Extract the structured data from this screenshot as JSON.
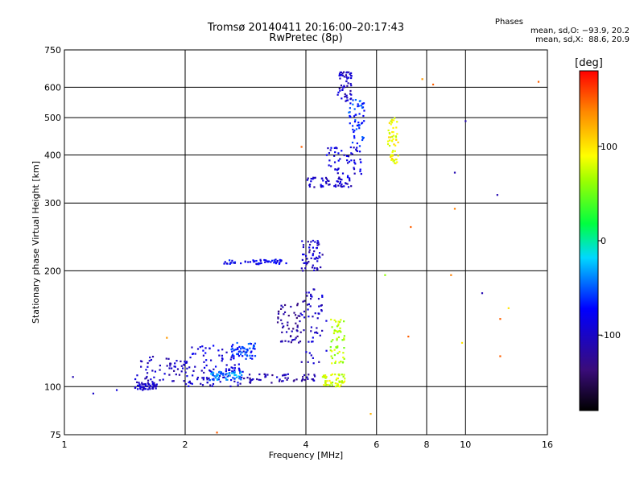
{
  "header": {
    "title_line1": "Tromsø 20140411 20:16:00–20:17:43",
    "title_line2": "RwPretec (8p)",
    "stats_title": "Phases",
    "stats_o": "mean, sd,O: −93.9, 20.2",
    "stats_x": "mean, sd,X:  88.6, 20.9"
  },
  "chart_data": {
    "type": "scatter",
    "xlabel": "Frequency [MHz]",
    "ylabel": "Stationary phase Virtual Height [km]",
    "x_scale": "log",
    "y_scale": "log",
    "xlim": [
      1,
      16
    ],
    "ylim": [
      75,
      750
    ],
    "x_ticks": [
      1,
      2,
      4,
      6,
      8,
      10,
      16
    ],
    "y_ticks": [
      75,
      100,
      200,
      300,
      400,
      500,
      600,
      750
    ],
    "grid": true,
    "colorbar": {
      "label": "[deg]",
      "range": [
        -180,
        180
      ],
      "ticks": [
        -100,
        0,
        100
      ]
    },
    "clusters": [
      {
        "x": [
          1.5,
          1.7
        ],
        "y": [
          98,
          103
        ],
        "phase": -100
      },
      {
        "x": [
          1.5,
          2.0
        ],
        "y": [
          103,
          120
        ],
        "phase": -105
      },
      {
        "x": [
          2.0,
          2.8
        ],
        "y": [
          100,
          112
        ],
        "phase": -95
      },
      {
        "x": [
          2.0,
          2.8
        ],
        "y": [
          110,
          128
        ],
        "phase": -90
      },
      {
        "x": [
          2.3,
          2.8
        ],
        "y": [
          104,
          110
        ],
        "phase": -40
      },
      {
        "x": [
          2.6,
          3.0
        ],
        "y": [
          118,
          130
        ],
        "phase": -60
      },
      {
        "x": [
          2.8,
          4.3
        ],
        "y": [
          102,
          108
        ],
        "phase": -110
      },
      {
        "x": [
          3.4,
          3.9
        ],
        "y": [
          130,
          165
        ],
        "phase": -120
      },
      {
        "x": [
          3.9,
          4.5
        ],
        "y": [
          115,
          180
        ],
        "phase": -100
      },
      {
        "x": [
          4.4,
          5.0
        ],
        "y": [
          100,
          108
        ],
        "phase": 80
      },
      {
        "x": [
          4.6,
          5.0
        ],
        "y": [
          115,
          150
        ],
        "phase": 70
      },
      {
        "x": [
          2.5,
          3.6
        ],
        "y": [
          208,
          214
        ],
        "phase": -80
      },
      {
        "x": [
          3.9,
          4.4
        ],
        "y": [
          200,
          240
        ],
        "phase": -100
      },
      {
        "x": [
          4.0,
          5.2
        ],
        "y": [
          330,
          350
        ],
        "phase": -100
      },
      {
        "x": [
          4.5,
          5.5
        ],
        "y": [
          350,
          420
        ],
        "phase": -90
      },
      {
        "x": [
          5.1,
          5.6
        ],
        "y": [
          420,
          560
        ],
        "phase": -60
      },
      {
        "x": [
          4.8,
          5.2
        ],
        "y": [
          550,
          660
        ],
        "phase": -100
      },
      {
        "x": [
          6.4,
          6.8
        ],
        "y": [
          380,
          500
        ],
        "phase": 90
      }
    ],
    "scattered": [
      {
        "x": 1.05,
        "y": 106,
        "phase": -110
      },
      {
        "x": 1.18,
        "y": 96,
        "phase": -100
      },
      {
        "x": 1.35,
        "y": 98,
        "phase": -90
      },
      {
        "x": 1.8,
        "y": 134,
        "phase": 130
      },
      {
        "x": 6.3,
        "y": 195,
        "phase": 60
      },
      {
        "x": 7.2,
        "y": 135,
        "phase": 150
      },
      {
        "x": 9.2,
        "y": 195,
        "phase": 140
      },
      {
        "x": 9.4,
        "y": 290,
        "phase": 140
      },
      {
        "x": 9.4,
        "y": 360,
        "phase": -110
      },
      {
        "x": 10.0,
        "y": 490,
        "phase": -110
      },
      {
        "x": 11.0,
        "y": 175,
        "phase": -110
      },
      {
        "x": 12.0,
        "y": 315,
        "phase": -110
      },
      {
        "x": 12.2,
        "y": 150,
        "phase": 150
      },
      {
        "x": 12.2,
        "y": 120,
        "phase": 150
      },
      {
        "x": 12.8,
        "y": 160,
        "phase": 100
      },
      {
        "x": 15.2,
        "y": 620,
        "phase": 150
      },
      {
        "x": 8.3,
        "y": 610,
        "phase": 150
      },
      {
        "x": 7.8,
        "y": 630,
        "phase": 130
      },
      {
        "x": 7.3,
        "y": 260,
        "phase": 150
      },
      {
        "x": 9.8,
        "y": 130,
        "phase": 100
      },
      {
        "x": 5.8,
        "y": 85,
        "phase": 120
      },
      {
        "x": 2.4,
        "y": 76,
        "phase": 150
      },
      {
        "x": 3.9,
        "y": 420,
        "phase": 150
      }
    ]
  }
}
